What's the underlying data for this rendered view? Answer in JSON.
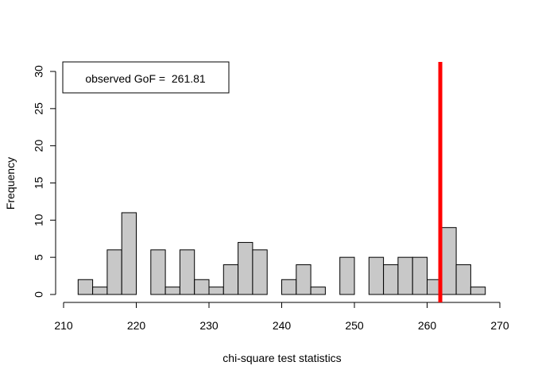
{
  "chart_data": {
    "type": "bar",
    "title": "",
    "xlabel": "chi-square test statistics",
    "ylabel": "Frequency",
    "xlim": [
      210,
      270
    ],
    "ylim": [
      0,
      30
    ],
    "x_ticks": [
      210,
      220,
      230,
      240,
      250,
      260,
      270
    ],
    "y_ticks": [
      0,
      5,
      10,
      15,
      20,
      25,
      30
    ],
    "bin_width": 2,
    "bins": [
      {
        "start": 212,
        "end": 214,
        "count": 2
      },
      {
        "start": 214,
        "end": 216,
        "count": 1
      },
      {
        "start": 216,
        "end": 218,
        "count": 6
      },
      {
        "start": 218,
        "end": 220,
        "count": 11
      },
      {
        "start": 220,
        "end": 222,
        "count": 0
      },
      {
        "start": 222,
        "end": 224,
        "count": 6
      },
      {
        "start": 224,
        "end": 226,
        "count": 1
      },
      {
        "start": 226,
        "end": 228,
        "count": 6
      },
      {
        "start": 228,
        "end": 230,
        "count": 2
      },
      {
        "start": 230,
        "end": 232,
        "count": 1
      },
      {
        "start": 232,
        "end": 234,
        "count": 4
      },
      {
        "start": 234,
        "end": 236,
        "count": 7
      },
      {
        "start": 236,
        "end": 238,
        "count": 6
      },
      {
        "start": 238,
        "end": 240,
        "count": 0
      },
      {
        "start": 240,
        "end": 242,
        "count": 2
      },
      {
        "start": 242,
        "end": 244,
        "count": 4
      },
      {
        "start": 244,
        "end": 246,
        "count": 1
      },
      {
        "start": 246,
        "end": 248,
        "count": 0
      },
      {
        "start": 248,
        "end": 250,
        "count": 5
      },
      {
        "start": 250,
        "end": 252,
        "count": 0
      },
      {
        "start": 252,
        "end": 254,
        "count": 5
      },
      {
        "start": 254,
        "end": 256,
        "count": 4
      },
      {
        "start": 256,
        "end": 258,
        "count": 5
      },
      {
        "start": 258,
        "end": 260,
        "count": 5
      },
      {
        "start": 260,
        "end": 262,
        "count": 2
      },
      {
        "start": 262,
        "end": 264,
        "count": 9
      },
      {
        "start": 264,
        "end": 266,
        "count": 4
      },
      {
        "start": 266,
        "end": 268,
        "count": 1
      }
    ],
    "observed_line": {
      "x": 261.81,
      "color": "#ff0000"
    },
    "legend": {
      "text": "observed GoF =  261.81",
      "position": "top-left"
    },
    "bar_fill": "#c8c8c8",
    "bar_stroke": "#000000"
  }
}
